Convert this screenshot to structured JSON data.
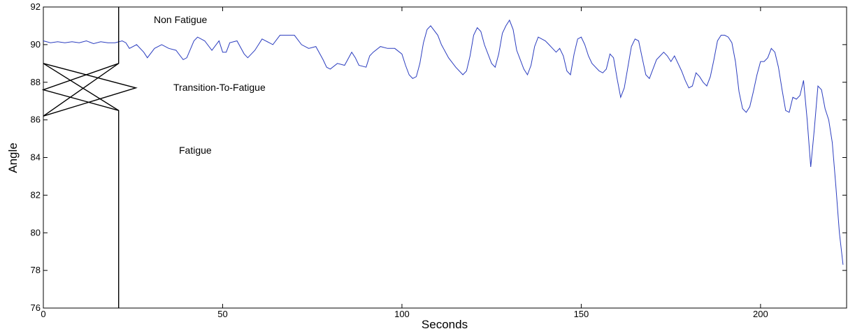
{
  "chart_data": {
    "type": "line",
    "xlabel": "Seconds",
    "ylabel": "Angle",
    "xlim": [
      0,
      224
    ],
    "ylim": [
      76,
      92
    ],
    "xticks": [
      0,
      50,
      100,
      150,
      200
    ],
    "yticks": [
      76,
      78,
      80,
      82,
      84,
      86,
      88,
      90,
      92
    ],
    "annotations": [
      "Non Fatigue",
      "Transition-To-Fatigue",
      "Fatigue"
    ],
    "series": [
      {
        "color": "#2b3dbf",
        "x": [
          0,
          2,
          4,
          6,
          8,
          10,
          12,
          14,
          16,
          18,
          20,
          22,
          23,
          24,
          26,
          28,
          29,
          31,
          33,
          35,
          37,
          39,
          40,
          42,
          43,
          45,
          47,
          49,
          50,
          51,
          52,
          54,
          56,
          57,
          59,
          61,
          63,
          64,
          66,
          68,
          70,
          72,
          74,
          76,
          78,
          79,
          80,
          82,
          84,
          86,
          87,
          88,
          90,
          91,
          92,
          94,
          96,
          98,
          100,
          101,
          102,
          103,
          104,
          105,
          106,
          107,
          108,
          110,
          111,
          113,
          115,
          117,
          118,
          119,
          120,
          121,
          122,
          123,
          125,
          126,
          127,
          128,
          129,
          130,
          131,
          132,
          133,
          134,
          135,
          136,
          137,
          138,
          140,
          141,
          142,
          143,
          144,
          145,
          146,
          147,
          148,
          149,
          150,
          151,
          152,
          153,
          155,
          156,
          157,
          158,
          159,
          160,
          161,
          162,
          163,
          164,
          165,
          166,
          167,
          168,
          169,
          170,
          171,
          172,
          173,
          174,
          175,
          176,
          177,
          178,
          179,
          180,
          181,
          182,
          183,
          184,
          185,
          186,
          187,
          188,
          189,
          190,
          191,
          192,
          193,
          194,
          195,
          196,
          197,
          198,
          199,
          200,
          201,
          202,
          203,
          204,
          205,
          206,
          207,
          208,
          209,
          210,
          211,
          212,
          213,
          214,
          215,
          216,
          217,
          218,
          219,
          220,
          221,
          222,
          223
        ],
        "values": [
          90.2,
          90.1,
          90.15,
          90.1,
          90.15,
          90.1,
          90.2,
          90.05,
          90.15,
          90.1,
          90.1,
          90.2,
          90.1,
          89.8,
          90.0,
          89.6,
          89.3,
          89.8,
          90.0,
          89.8,
          89.7,
          89.2,
          89.3,
          90.2,
          90.4,
          90.2,
          89.7,
          90.2,
          89.6,
          89.6,
          90.1,
          90.2,
          89.5,
          89.3,
          89.7,
          90.3,
          90.1,
          90.0,
          90.5,
          90.5,
          90.5,
          90.0,
          89.8,
          89.9,
          89.2,
          88.8,
          88.7,
          89.0,
          88.9,
          89.6,
          89.3,
          88.9,
          88.8,
          89.4,
          89.6,
          89.9,
          89.8,
          89.8,
          89.5,
          88.9,
          88.4,
          88.2,
          88.3,
          89.0,
          90.1,
          90.8,
          91.0,
          90.5,
          90.0,
          89.3,
          88.8,
          88.4,
          88.6,
          89.4,
          90.5,
          90.9,
          90.7,
          90.0,
          89.0,
          88.8,
          89.5,
          90.6,
          91.0,
          91.3,
          90.8,
          89.7,
          89.2,
          88.7,
          88.4,
          88.9,
          89.9,
          90.4,
          90.2,
          90.0,
          89.8,
          89.6,
          89.8,
          89.4,
          88.6,
          88.4,
          89.5,
          90.3,
          90.4,
          90.0,
          89.4,
          89.0,
          88.6,
          88.5,
          88.7,
          89.5,
          89.3,
          88.2,
          87.2,
          87.7,
          88.8,
          89.9,
          90.3,
          90.2,
          89.3,
          88.4,
          88.2,
          88.7,
          89.2,
          89.4,
          89.6,
          89.4,
          89.1,
          89.4,
          89.0,
          88.6,
          88.1,
          87.7,
          87.8,
          88.5,
          88.3,
          88.0,
          87.8,
          88.3,
          89.2,
          90.2,
          90.5,
          90.5,
          90.4,
          90.1,
          89.1,
          87.5,
          86.6,
          86.4,
          86.7,
          87.5,
          88.4,
          89.1,
          89.1,
          89.3,
          89.8,
          89.6,
          88.8,
          87.6,
          86.5,
          86.4,
          87.2,
          87.1,
          87.3,
          88.1,
          86.0,
          83.5,
          85.5,
          87.8,
          87.6,
          86.6,
          86.0,
          84.8,
          82.5,
          80.0,
          78.3
        ]
      },
      {
        "color": "#000000",
        "x": [
          21,
          21,
          0
        ],
        "values": [
          92,
          89,
          86.2
        ]
      },
      {
        "color": "#000000",
        "x": [
          21,
          21,
          0
        ],
        "values": [
          76,
          86.5,
          89
        ]
      },
      {
        "color": "#000000",
        "x": [
          0,
          25.8,
          0
        ],
        "values": [
          89,
          87.7,
          86.2
        ]
      },
      {
        "color": "#000000",
        "x": [
          21,
          0,
          21
        ],
        "values": [
          89,
          87.6,
          86.5
        ]
      }
    ]
  }
}
